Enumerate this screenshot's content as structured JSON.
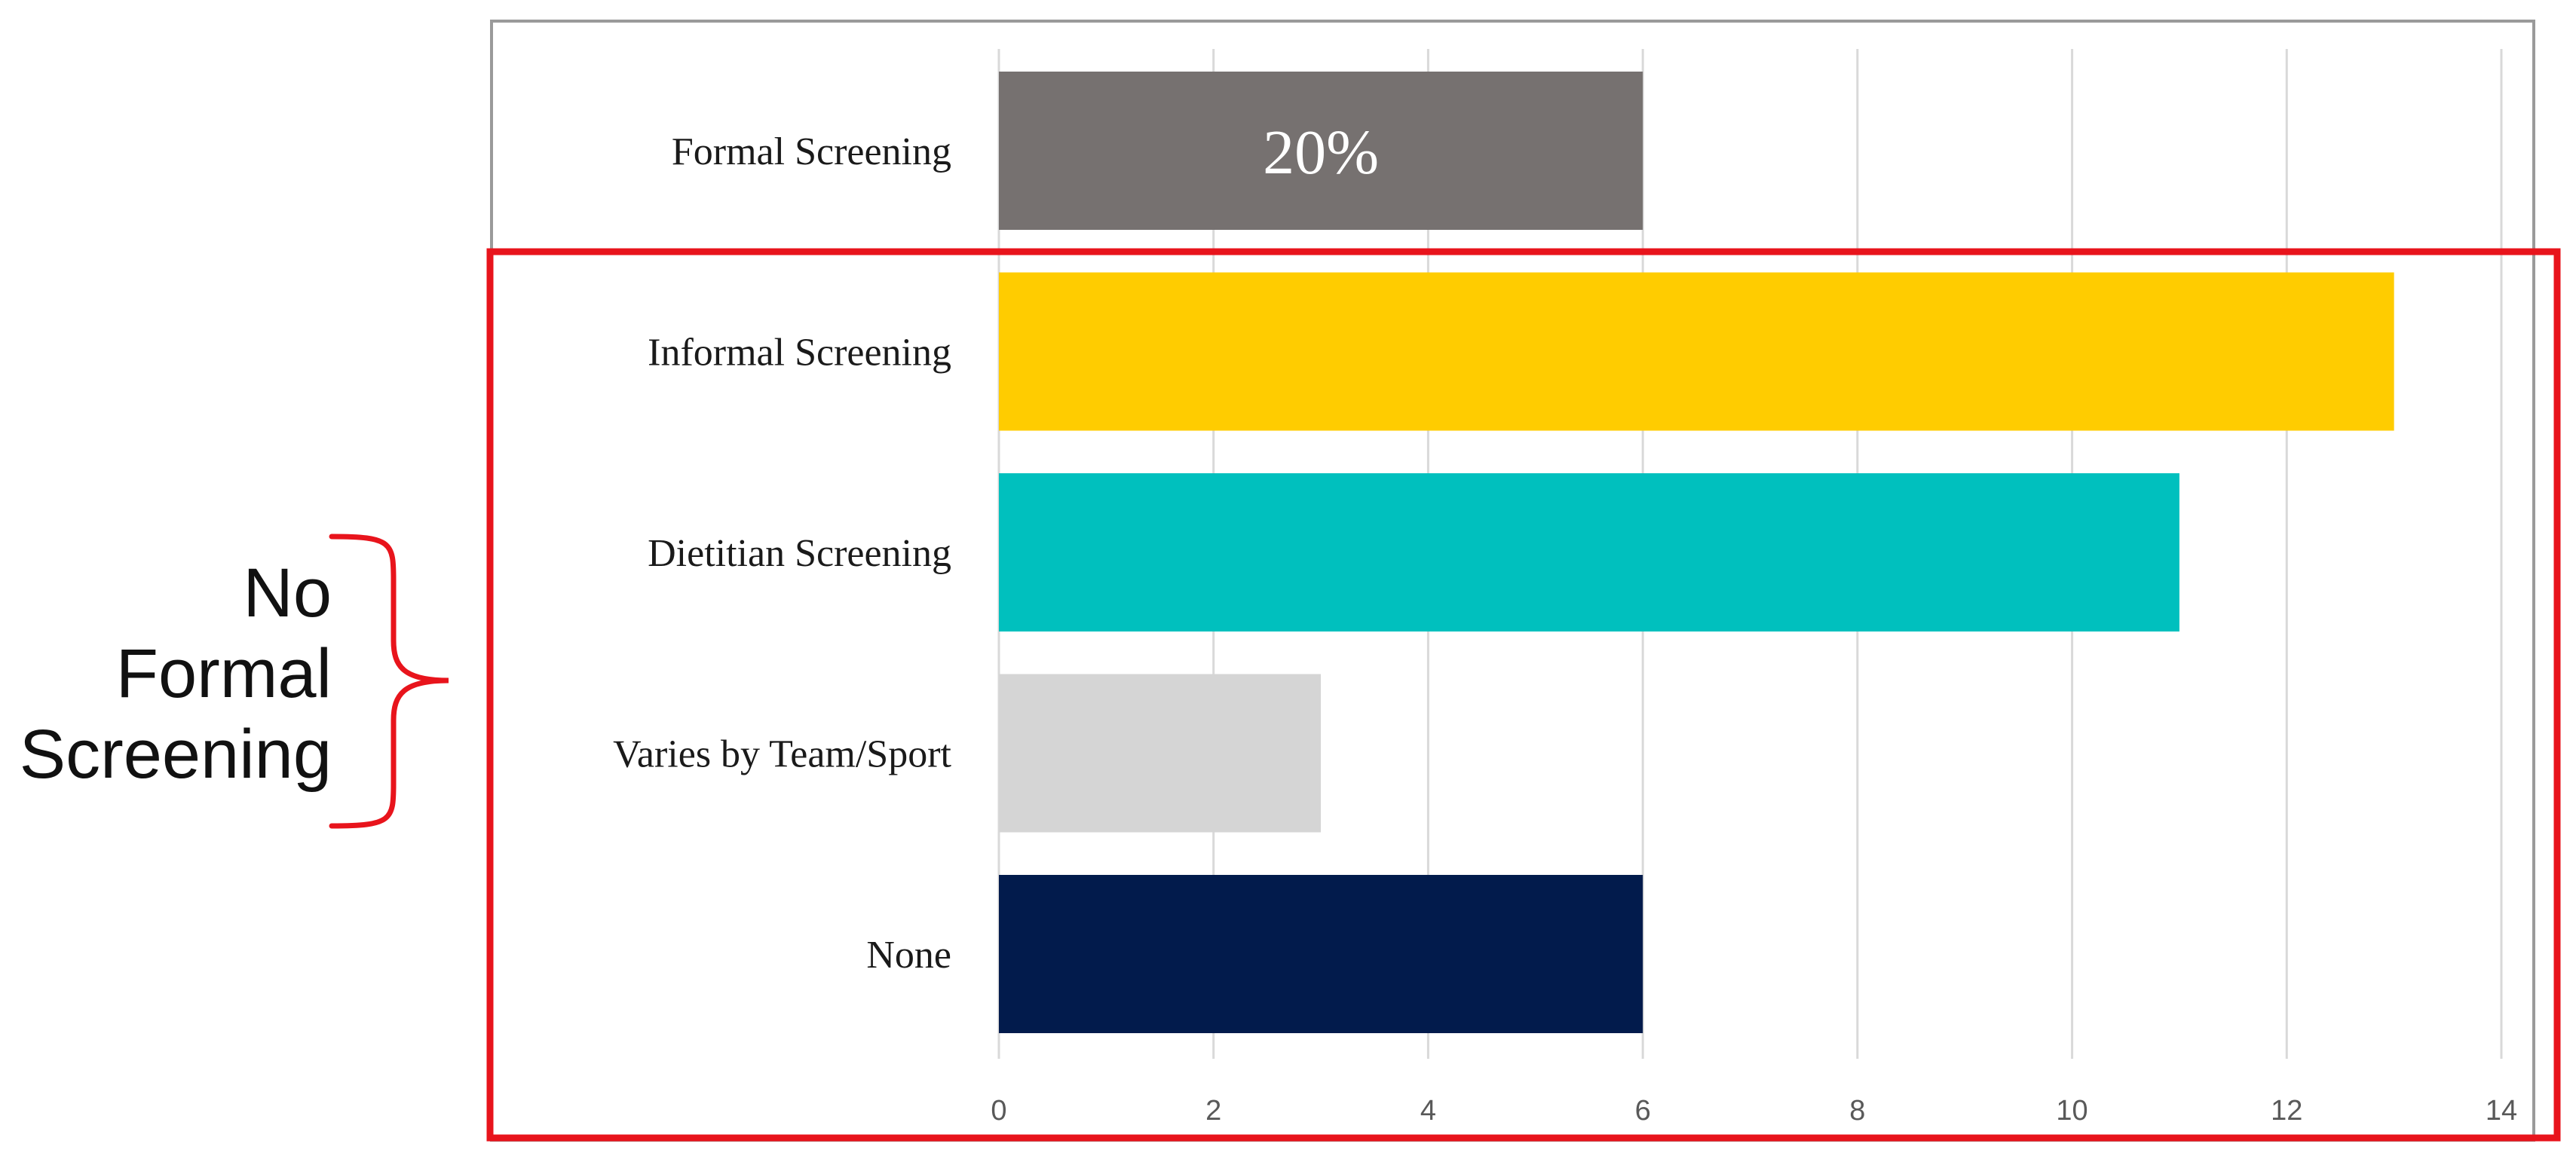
{
  "chart_data": {
    "type": "bar",
    "orientation": "horizontal",
    "categories": [
      "Formal Screening",
      "Informal Screening",
      "Dietitian Screening",
      "Varies by Team/Sport",
      "None"
    ],
    "values": [
      6,
      13,
      11,
      3,
      6
    ],
    "bar_colors": [
      "#767170",
      "#FFCC00",
      "#00C0BE",
      "#D5D5D5",
      "#021B4C"
    ],
    "data_labels": [
      {
        "category": "Formal Screening",
        "text": "20%"
      }
    ],
    "xlim": [
      0,
      14
    ],
    "x_ticks": [
      0,
      2,
      4,
      6,
      8,
      10,
      12,
      14
    ],
    "grid": "vertical",
    "annotation": {
      "text_lines": [
        "No",
        "Formal",
        "Screening"
      ],
      "bracket_color": "#E8141C",
      "box_color": "#E8141C",
      "groups": [
        "Informal Screening",
        "Dietitian Screening",
        "Varies by Team/Sport",
        "None"
      ]
    }
  }
}
